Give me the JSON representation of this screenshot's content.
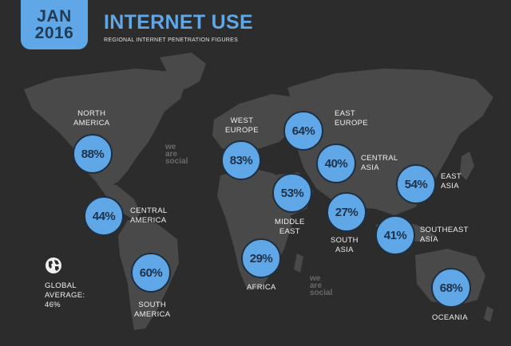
{
  "header": {
    "date_line1": "JAN",
    "date_line2": "2016",
    "title": "INTERNET USE",
    "subtitle": "REGIONAL INTERNET PENETRATION FIGURES"
  },
  "regions": [
    {
      "name_line1": "NORTH",
      "name_line2": "AMERICA",
      "value": "88%",
      "percent": 88
    },
    {
      "name_line1": "CENTRAL",
      "name_line2": "AMERICA",
      "value": "44%",
      "percent": 44
    },
    {
      "name_line1": "SOUTH",
      "name_line2": "AMERICA",
      "value": "60%",
      "percent": 60
    },
    {
      "name_line1": "WEST",
      "name_line2": "EUROPE",
      "value": "83%",
      "percent": 83
    },
    {
      "name_line1": "EAST",
      "name_line2": "EUROPE",
      "value": "64%",
      "percent": 64
    },
    {
      "name_line1": "CENTRAL",
      "name_line2": "ASIA",
      "value": "40%",
      "percent": 40
    },
    {
      "name_line1": "MIDDLE",
      "name_line2": "EAST",
      "value": "53%",
      "percent": 53
    },
    {
      "name_line1": "AFRICA",
      "name_line2": "",
      "value": "29%",
      "percent": 29
    },
    {
      "name_line1": "SOUTH",
      "name_line2": "ASIA",
      "value": "27%",
      "percent": 27
    },
    {
      "name_line1": "EAST",
      "name_line2": "ASIA",
      "value": "54%",
      "percent": 54
    },
    {
      "name_line1": "SOUTHEAST",
      "name_line2": "ASIA",
      "value": "41%",
      "percent": 41
    },
    {
      "name_line1": "OCEANIA",
      "name_line2": "",
      "value": "68%",
      "percent": 68
    }
  ],
  "global": {
    "line1": "GLOBAL",
    "line2": "AVERAGE:",
    "line3": "46%",
    "icon": "globe-icon"
  },
  "watermark": {
    "line1": "we",
    "line2": "are",
    "line3": "social"
  },
  "colors": {
    "background": "#2d2c2c",
    "land": "#4a4949",
    "accent": "#5fa7e6"
  }
}
